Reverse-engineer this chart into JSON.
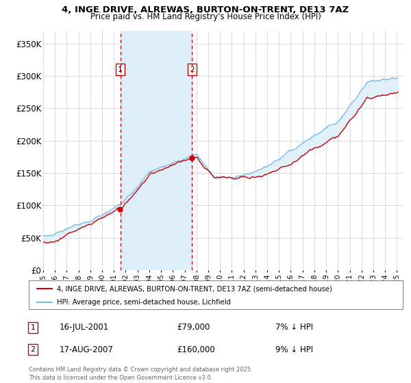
{
  "title": "4, INGE DRIVE, ALREWAS, BURTON-ON-TRENT, DE13 7AZ",
  "subtitle": "Price paid vs. HM Land Registry's House Price Index (HPI)",
  "legend_label_red": "4, INGE DRIVE, ALREWAS, BURTON-ON-TRENT, DE13 7AZ (semi-detached house)",
  "legend_label_blue": "HPI: Average price, semi-detached house, Lichfield",
  "ylim": [
    0,
    370000
  ],
  "yticks": [
    0,
    50000,
    100000,
    150000,
    200000,
    250000,
    300000,
    350000
  ],
  "ytick_labels": [
    "£0",
    "£50K",
    "£100K",
    "£150K",
    "£200K",
    "£250K",
    "£300K",
    "£350K"
  ],
  "marker1_year": 2001.54,
  "marker1_label": "1",
  "marker1_price": 79000,
  "marker1_text": "16-JUL-2001",
  "marker1_pct": "7% ↓ HPI",
  "marker2_year": 2007.63,
  "marker2_label": "2",
  "marker2_price": 160000,
  "marker2_text": "17-AUG-2007",
  "marker2_pct": "9% ↓ HPI",
  "red_color": "#cc0000",
  "blue_color": "#7ab8e8",
  "shade_color": "#ddeef9",
  "grid_color": "#cccccc",
  "background_color": "#ffffff",
  "footer_text": "Contains HM Land Registry data © Crown copyright and database right 2025.\nThis data is licensed under the Open Government Licence v3.0."
}
